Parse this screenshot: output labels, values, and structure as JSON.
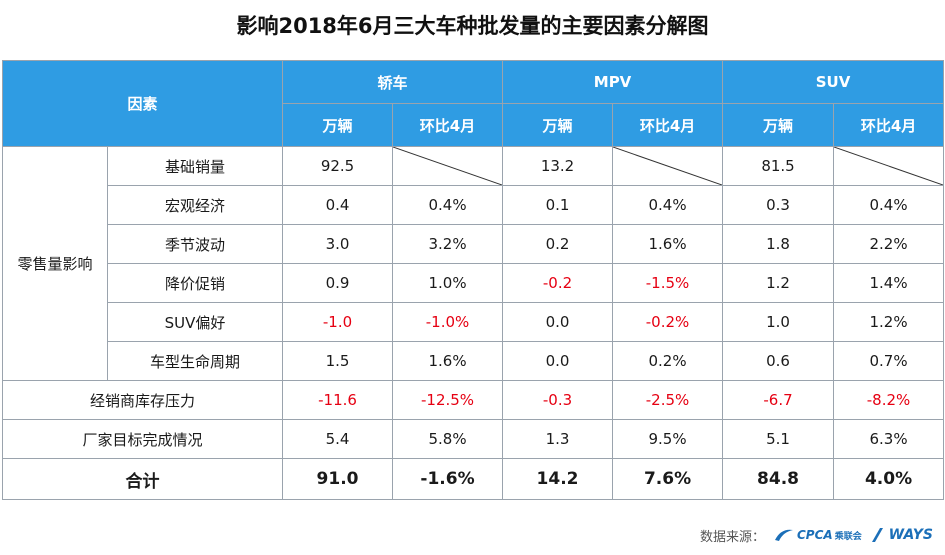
{
  "title": "影响2018年6月三大车种批发量的主要因素分解图",
  "header": {
    "factor": "因素",
    "groups": [
      "轿车",
      "MPV",
      "SUV"
    ],
    "units": "万辆",
    "mom": "环比4月"
  },
  "zero_sales_group": "零售量影响",
  "rows": [
    {
      "label": "基础销量",
      "values": [
        "92.5",
        "",
        "13.2",
        "",
        "81.5",
        ""
      ]
    },
    {
      "label": "宏观经济",
      "values": [
        "0.4",
        "0.4%",
        "0.1",
        "0.4%",
        "0.3",
        "0.4%"
      ]
    },
    {
      "label": "季节波动",
      "values": [
        "3.0",
        "3.2%",
        "0.2",
        "1.6%",
        "1.8",
        "2.2%"
      ]
    },
    {
      "label": "降价促销",
      "values": [
        "0.9",
        "1.0%",
        "-0.2",
        "-1.5%",
        "1.2",
        "1.4%"
      ]
    },
    {
      "label": "SUV偏好",
      "values": [
        "-1.0",
        "-1.0%",
        "0.0",
        "-0.2%",
        "1.0",
        "1.2%"
      ]
    },
    {
      "label": "车型生命周期",
      "values": [
        "1.5",
        "1.6%",
        "0.0",
        "0.2%",
        "0.6",
        "0.7%"
      ]
    }
  ],
  "other_rows": [
    {
      "label": "经销商库存压力",
      "values": [
        "-11.6",
        "-12.5%",
        "-0.3",
        "-2.5%",
        "-6.7",
        "-8.2%"
      ]
    },
    {
      "label": "厂家目标完成情况",
      "values": [
        "5.4",
        "5.8%",
        "1.3",
        "9.5%",
        "5.1",
        "6.3%"
      ]
    }
  ],
  "total": {
    "label": "合计",
    "values": [
      "91.0",
      "-1.6%",
      "14.2",
      "7.6%",
      "84.8",
      "4.0%"
    ]
  },
  "footer": {
    "source_label": "数据来源：",
    "logo1": "CPCA",
    "logo1_sub": "乘联会",
    "logo2": "WAYS"
  },
  "colors": {
    "header_bg": "#2f9ce3",
    "negative": "#e60012"
  }
}
